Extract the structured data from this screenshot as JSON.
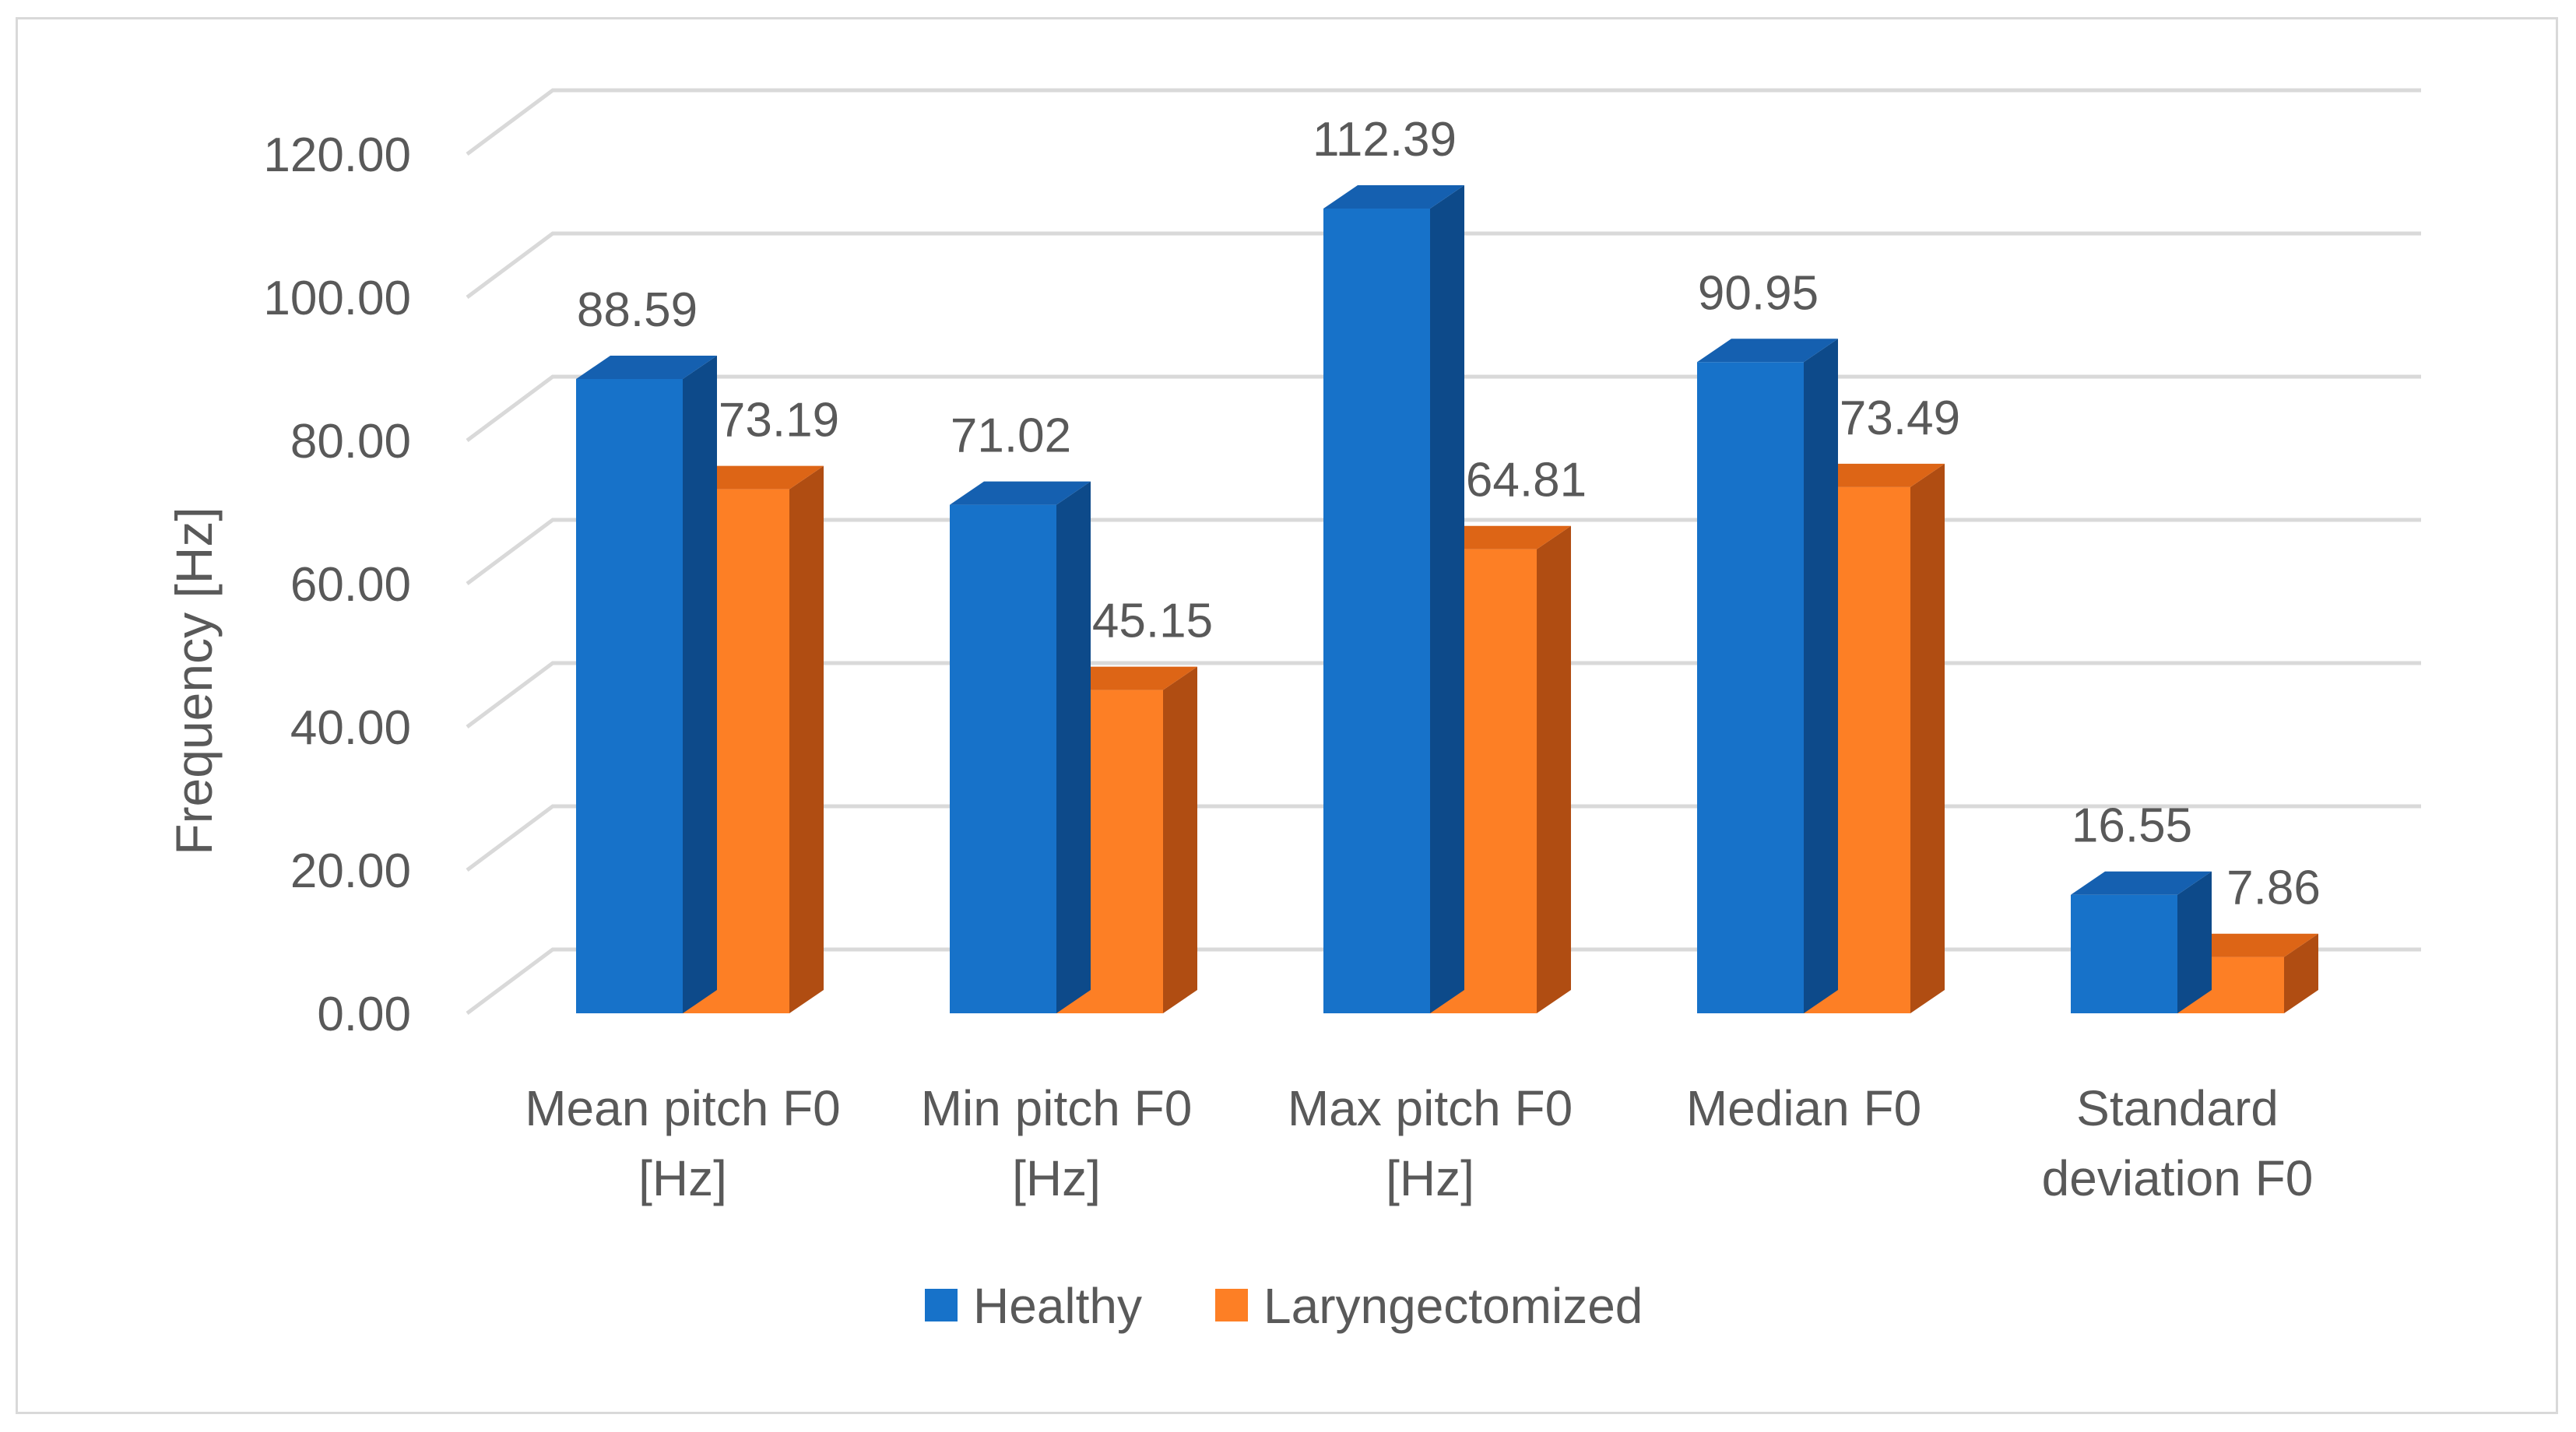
{
  "chart_data": {
    "type": "bar",
    "style": "3d-clustered-column",
    "title": "",
    "xlabel": "",
    "ylabel": "Frequency [Hz]",
    "ylim": [
      0,
      120
    ],
    "ytick_step": 20,
    "ytick_labels": [
      "0.00",
      "20.00",
      "40.00",
      "60.00",
      "80.00",
      "100.00",
      "120.00"
    ],
    "grid": true,
    "legend_position": "bottom",
    "categories": [
      [
        "Mean pitch F0",
        "[Hz]"
      ],
      [
        "Min pitch F0",
        "[Hz]"
      ],
      [
        "Max pitch F0",
        "[Hz]"
      ],
      [
        "Median F0"
      ],
      [
        "Standard",
        "deviation F0"
      ]
    ],
    "series": [
      {
        "name": "Healthy",
        "color": "#1772c9",
        "side_color": "#0d4a8a",
        "top_color": "#1560b0",
        "values": [
          88.59,
          71.02,
          112.39,
          90.95,
          16.55
        ],
        "labels": [
          "88.59",
          "71.02",
          "112.39",
          "90.95",
          "16.55"
        ]
      },
      {
        "name": "Laryngectomized",
        "color": "#fd7f25",
        "side_color": "#b04d12",
        "top_color": "#dd6516",
        "values": [
          73.19,
          45.15,
          64.81,
          73.49,
          7.86
        ],
        "labels": [
          "73.19",
          "45.15",
          "64.81",
          "73.49",
          "7.86"
        ]
      }
    ]
  }
}
